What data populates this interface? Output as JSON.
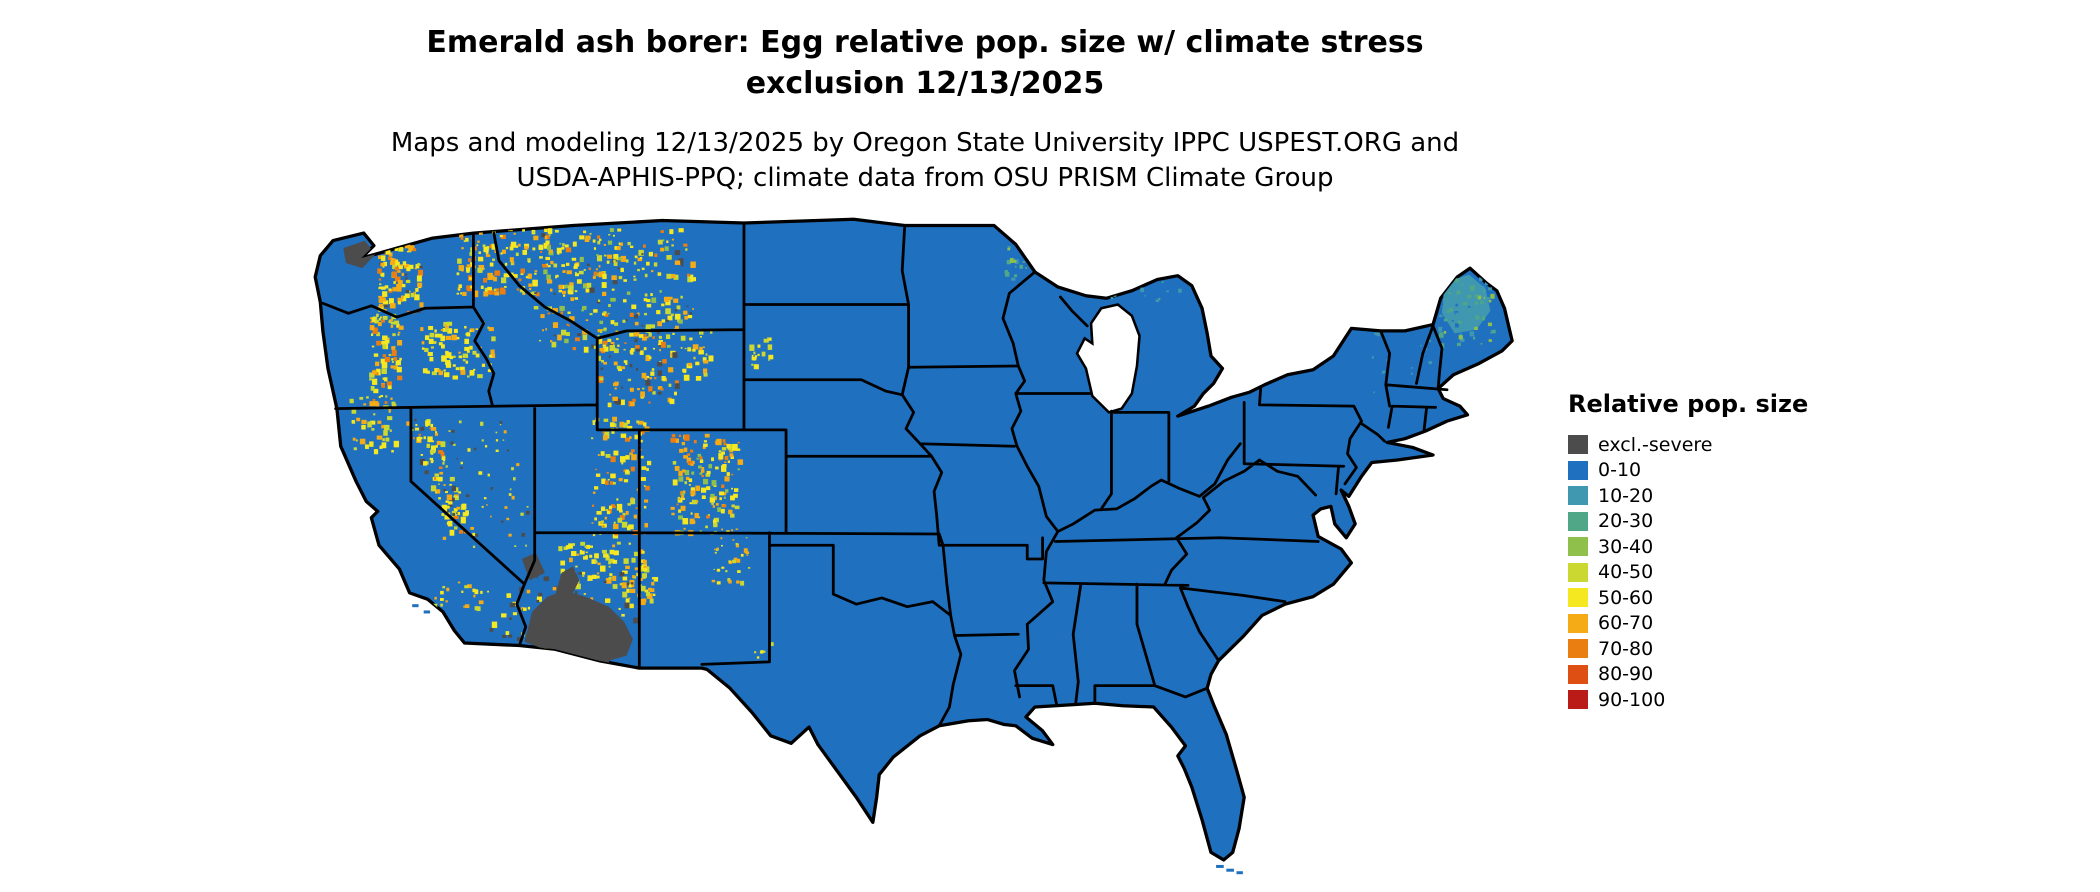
{
  "title": {
    "line1": "Emerald ash borer: Egg relative pop. size w/ climate stress",
    "line2": "exclusion 12/13/2025"
  },
  "subtitle": {
    "line1": "Maps and modeling 12/13/2025 by Oregon State University IPPC USPEST.ORG and",
    "line2": "USDA-APHIS-PPQ; climate data from OSU PRISM Climate Group"
  },
  "legend": {
    "title": "Relative pop. size",
    "items": [
      {
        "key": "excl",
        "label": "excl.-severe",
        "color": "#4c4c4c"
      },
      {
        "key": "v0",
        "label": "0-10",
        "color": "#2070c0"
      },
      {
        "key": "v10",
        "label": "10-20",
        "color": "#3f97b0"
      },
      {
        "key": "v20",
        "label": "20-30",
        "color": "#4fa787"
      },
      {
        "key": "v30",
        "label": "30-40",
        "color": "#8fc04c"
      },
      {
        "key": "v40",
        "label": "40-50",
        "color": "#cbd832"
      },
      {
        "key": "v50",
        "label": "50-60",
        "color": "#f6e820"
      },
      {
        "key": "v60",
        "label": "60-70",
        "color": "#f5ab15"
      },
      {
        "key": "v70",
        "label": "70-80",
        "color": "#ea7e11"
      },
      {
        "key": "v80",
        "label": "80-90",
        "color": "#dd4f12"
      },
      {
        "key": "v90",
        "label": "90-100",
        "color": "#bb1b16"
      }
    ]
  },
  "map": {
    "background": "#ffffff",
    "border_color": "#000000",
    "base_fill_key": "v0",
    "regions": [
      {
        "name": "maine-highlands-patch",
        "type": "patch",
        "fill": "v10"
      },
      {
        "name": "washington-cascades",
        "type": "speckle",
        "palette": [
          "v50",
          "v50",
          "v50",
          "v60",
          "v60",
          "v40",
          "v70",
          "excl"
        ]
      },
      {
        "name": "okanogan-highlands",
        "type": "speckle",
        "palette": [
          "v50",
          "v50",
          "v60",
          "v40",
          "v60",
          "v70"
        ]
      },
      {
        "name": "idaho-montana-rockies",
        "type": "speckle",
        "palette": [
          "v50",
          "v50",
          "v50",
          "v60",
          "v60",
          "v40",
          "v40",
          "v70",
          "v30",
          "excl"
        ]
      },
      {
        "name": "oregon-cascades",
        "type": "speckle",
        "palette": [
          "v50",
          "v50",
          "v60",
          "v40",
          "v70"
        ]
      },
      {
        "name": "blue-mountains",
        "type": "speckle",
        "palette": [
          "v50",
          "v50",
          "v60",
          "v40"
        ]
      },
      {
        "name": "klamath-mountains",
        "type": "speckle",
        "palette": [
          "v50",
          "v40",
          "v60"
        ]
      },
      {
        "name": "sierra-nevada",
        "type": "speckle",
        "palette": [
          "v50",
          "v50",
          "v60",
          "v40",
          "v70",
          "excl"
        ]
      },
      {
        "name": "socal-ranges",
        "type": "speckle",
        "palette": [
          "v50",
          "v60",
          "v40"
        ]
      },
      {
        "name": "great-basin",
        "type": "speckle",
        "palette": [
          "v50",
          "v40",
          "v50",
          "excl",
          "v60"
        ]
      },
      {
        "name": "wasatch-plateau",
        "type": "speckle",
        "palette": [
          "v50",
          "v50",
          "v60",
          "v40",
          "v70"
        ]
      },
      {
        "name": "yellowstone-tetons",
        "type": "speckle",
        "palette": [
          "v50",
          "v50",
          "v60",
          "v40",
          "v70",
          "excl"
        ]
      },
      {
        "name": "bighorn-mountains",
        "type": "speckle",
        "palette": [
          "v50",
          "v60",
          "v40"
        ]
      },
      {
        "name": "colorado-rockies",
        "type": "speckle",
        "palette": [
          "v50",
          "v50",
          "v60",
          "v60",
          "v40",
          "v70",
          "v30"
        ]
      },
      {
        "name": "northern-new-mexico",
        "type": "speckle",
        "palette": [
          "v50",
          "v40",
          "v60"
        ]
      },
      {
        "name": "mogollon-rim",
        "type": "speckle",
        "palette": [
          "v50",
          "v50",
          "v60",
          "v40"
        ]
      },
      {
        "name": "white-mountains-az",
        "type": "speckle",
        "palette": [
          "v50",
          "v60",
          "v40"
        ]
      },
      {
        "name": "black-hills",
        "type": "speckle",
        "palette": [
          "v50",
          "v40"
        ]
      },
      {
        "name": "guadalupe-mountains",
        "type": "speckle",
        "palette": [
          "v50",
          "v40"
        ]
      },
      {
        "name": "sonoran-desert-fringe",
        "type": "speckle",
        "palette": [
          "excl",
          "excl",
          "excl",
          "v50",
          "v60"
        ]
      },
      {
        "name": "mojave-desert",
        "type": "speckle",
        "palette": [
          "excl",
          "excl",
          "v50"
        ]
      },
      {
        "name": "minnesota-arrowhead",
        "type": "speckle",
        "palette": [
          "v10",
          "v10",
          "v10",
          "v20",
          "v20",
          "v30",
          "v0",
          "v0"
        ]
      },
      {
        "name": "upper-peninsula",
        "type": "speckle",
        "palette": [
          "v10",
          "v10",
          "v0",
          "v0",
          "v0",
          "v20"
        ]
      },
      {
        "name": "northern-maine",
        "type": "speckle",
        "palette": [
          "v10",
          "v10",
          "v10",
          "v20",
          "v20",
          "v20",
          "v30",
          "v0"
        ]
      },
      {
        "name": "new-england-mountains",
        "type": "speckle",
        "palette": [
          "v10",
          "v10",
          "v0",
          "v0"
        ]
      },
      {
        "name": "olympic-exclusion",
        "type": "patch",
        "fill": "excl"
      },
      {
        "name": "sonoran-exclusion",
        "type": "patch",
        "fill": "excl"
      },
      {
        "name": "vegas-exclusion",
        "type": "patch",
        "fill": "excl"
      },
      {
        "name": "border-sliver-mn",
        "type": "patch",
        "fill": "v60"
      },
      {
        "name": "border-sliver-red",
        "type": "patch",
        "fill": "v80"
      }
    ]
  }
}
